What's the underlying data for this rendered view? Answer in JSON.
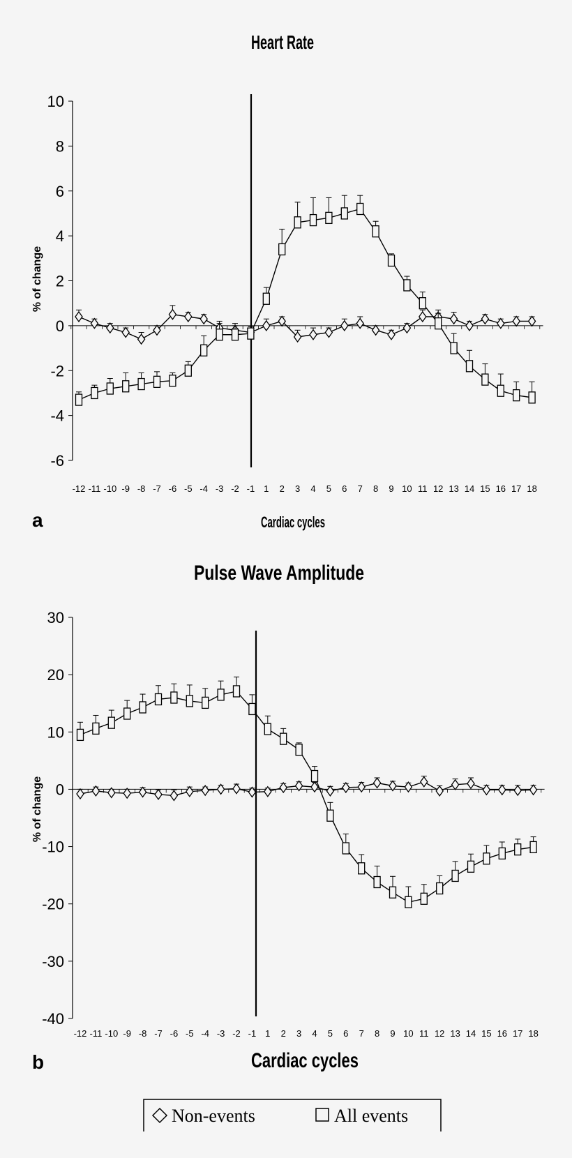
{
  "chart_data": [
    {
      "type": "line",
      "panel": "a",
      "title": "Heart Rate",
      "xlabel": "Cardiac cycles",
      "ylabel": "% of change",
      "x": [
        -12,
        -11,
        -10,
        -9,
        -8,
        -7,
        -6,
        -5,
        -4,
        -3,
        -2,
        -1,
        1,
        2,
        3,
        4,
        5,
        6,
        7,
        8,
        9,
        10,
        11,
        12,
        13,
        14,
        15,
        16,
        17,
        18
      ],
      "ylim": [
        -6,
        10
      ],
      "yticks": [
        -6,
        -4,
        -2,
        0,
        2,
        4,
        6,
        8,
        10
      ],
      "series": [
        {
          "name": "Non-events",
          "marker": "diamond",
          "values": [
            0.4,
            0.1,
            -0.1,
            -0.3,
            -0.6,
            -0.2,
            0.5,
            0.4,
            0.3,
            -0.1,
            -0.2,
            -0.3,
            0.0,
            0.2,
            -0.5,
            -0.4,
            -0.3,
            0.0,
            0.1,
            -0.2,
            -0.4,
            -0.1,
            0.4,
            0.4,
            0.3,
            0.0,
            0.3,
            0.1,
            0.2,
            0.2
          ],
          "errors": [
            0.3,
            0.2,
            0.2,
            0.2,
            0.3,
            0.2,
            0.4,
            0.2,
            0.2,
            0.3,
            0.3,
            0.2,
            0.3,
            0.2,
            0.3,
            0.3,
            0.2,
            0.3,
            0.3,
            0.2,
            0.2,
            0.2,
            0.3,
            0.3,
            0.3,
            0.2,
            0.2,
            0.2,
            0.2,
            0.2
          ]
        },
        {
          "name": "All events",
          "marker": "square",
          "values": [
            -3.3,
            -3.0,
            -2.8,
            -2.7,
            -2.6,
            -2.5,
            -2.45,
            -2.0,
            -1.1,
            -0.4,
            -0.4,
            -0.35,
            1.2,
            3.4,
            4.6,
            4.7,
            4.8,
            5.0,
            5.2,
            4.2,
            2.9,
            1.8,
            1.0,
            0.1,
            -1.0,
            -1.8,
            -2.4,
            -2.9,
            -3.1,
            -3.2
          ],
          "errors": [
            0.35,
            0.35,
            0.45,
            0.6,
            0.5,
            0.45,
            0.35,
            0.4,
            0.65,
            0.5,
            0.4,
            0.3,
            0.5,
            0.9,
            0.9,
            1.0,
            0.9,
            0.8,
            0.6,
            0.45,
            0.3,
            0.4,
            0.5,
            0.45,
            0.65,
            0.7,
            0.7,
            0.75,
            0.6,
            0.7
          ]
        }
      ]
    },
    {
      "type": "line",
      "panel": "b",
      "title": "Pulse Wave Amplitude",
      "xlabel": "Cardiac cycles",
      "ylabel": "% of change",
      "x": [
        -12,
        -11,
        -10,
        -9,
        -8,
        -7,
        -6,
        -5,
        -4,
        -3,
        -2,
        -1,
        1,
        2,
        3,
        4,
        5,
        6,
        7,
        8,
        9,
        10,
        11,
        12,
        13,
        14,
        15,
        16,
        17,
        18
      ],
      "ylim": [
        -40,
        30
      ],
      "yticks": [
        -40,
        -30,
        -20,
        -10,
        0,
        10,
        20,
        30
      ],
      "series": [
        {
          "name": "Non-events",
          "marker": "diamond",
          "values": [
            -0.8,
            -0.3,
            -0.6,
            -0.7,
            -0.5,
            -0.9,
            -1.1,
            -0.4,
            -0.2,
            0.0,
            0.1,
            -0.5,
            -0.4,
            0.3,
            0.6,
            0.4,
            -0.3,
            0.3,
            0.4,
            1.1,
            0.6,
            0.4,
            1.3,
            -0.3,
            0.8,
            1.0,
            -0.1,
            -0.1,
            -0.2,
            -0.1
          ],
          "errors": [
            0.8,
            0.7,
            0.6,
            0.7,
            0.8,
            0.8,
            1.0,
            0.8,
            0.6,
            0.7,
            0.8,
            0.7,
            0.6,
            0.7,
            0.7,
            0.8,
            0.8,
            0.7,
            0.8,
            0.9,
            0.8,
            0.7,
            1.0,
            0.9,
            1.0,
            1.0,
            0.8,
            0.8,
            0.9,
            0.8
          ]
        },
        {
          "name": "All events",
          "marker": "square",
          "values": [
            9.5,
            10.6,
            11.6,
            13.2,
            14.3,
            15.7,
            16.0,
            15.4,
            15.1,
            16.5,
            17.1,
            14.0,
            10.5,
            8.8,
            6.9,
            2.3,
            -4.6,
            -10.3,
            -13.8,
            -16.2,
            -18.0,
            -19.7,
            -19.1,
            -17.3,
            -15.1,
            -13.5,
            -12.1,
            -11.2,
            -10.5,
            -10.1
          ],
          "errors": [
            2.2,
            2.3,
            2.2,
            2.3,
            2.3,
            2.4,
            2.4,
            2.8,
            2.5,
            2.4,
            2.5,
            2.5,
            2.3,
            1.8,
            1.2,
            1.7,
            2.3,
            2.5,
            2.4,
            2.8,
            2.8,
            2.7,
            2.5,
            2.2,
            2.5,
            2.2,
            2.3,
            2.0,
            1.8,
            1.8
          ]
        }
      ]
    }
  ],
  "legend": {
    "items": [
      {
        "symbol": "diamond",
        "label": "Non-events"
      },
      {
        "symbol": "square",
        "label": "All events"
      }
    ]
  }
}
